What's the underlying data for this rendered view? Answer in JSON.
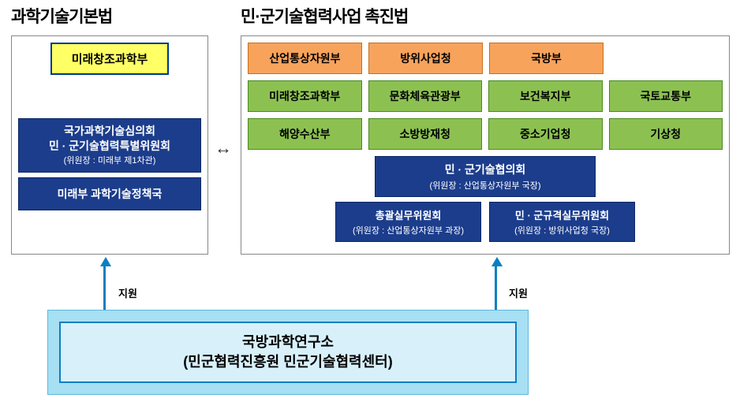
{
  "titles": {
    "left": "과학기술기본법",
    "right": "민·군기술협력사업 촉진법"
  },
  "left": {
    "yellow": "미래창조과학부",
    "blue1_line1": "국가과학기술심의회",
    "blue1_line2": "민 · 군기술협력특별위원회",
    "blue1_sub": "(위원장 : 미래부 제1차관)",
    "blue2": "미래부 과학기술정책국"
  },
  "right": {
    "row1": [
      "산업통상자원부",
      "방위사업청",
      "국방부"
    ],
    "row2": [
      "미래창조과학부",
      "문화체육관광부",
      "보건복지부",
      "국토교통부"
    ],
    "row3": [
      "해양수산부",
      "소방방재청",
      "중소기업청",
      "기상청"
    ],
    "blue_center": {
      "title": "민 · 군기술협의회",
      "sub": "(위원장 : 산업통상자원부 국장)"
    },
    "blue_left": {
      "title": "총괄실무위원회",
      "sub": "(위원장 : 산업통상자원부 과장)"
    },
    "blue_right": {
      "title": "민 · 군규격실무위원회",
      "sub": "(위원장 : 방위사업청 국장)"
    }
  },
  "arrows": {
    "bi": "↔",
    "support": "지원"
  },
  "bottom": {
    "line1": "국방과학연구소",
    "line2": "(민군협력진흥원 민군기술협력센터)"
  },
  "colors": {
    "yellow_bg": "#ffff66",
    "blue_bg": "#1c3d8c",
    "orange_bg": "#f7a35c",
    "green_bg": "#8cc152",
    "light_blue_bg": "#a7dff3",
    "light_blue_inner": "#d8f0fa",
    "arrow": "#0a7fc2"
  }
}
